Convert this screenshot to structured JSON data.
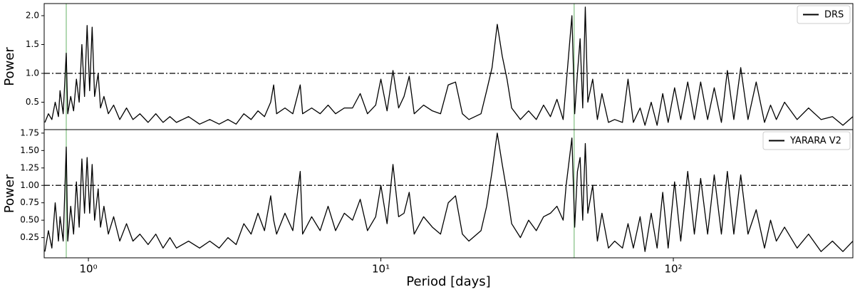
{
  "chart_data": [
    {
      "type": "line",
      "ylabel": "Power",
      "xscale": "log",
      "xlim": [
        0.706,
        411
      ],
      "ylim": [
        0.025,
        2.21
      ],
      "yticks": [
        0.5,
        {
          "value": 1,
          "label": "1.0"
        },
        1.5,
        {
          "value": 2,
          "label": "2.0"
        }
      ],
      "hline": 1,
      "vlines": [
        0.84,
        45.8
      ],
      "vline_color": "#7fbf7f",
      "legend": "upper right",
      "x": [
        0.71,
        0.73,
        0.75,
        0.77,
        0.79,
        0.8,
        0.82,
        0.84,
        0.85,
        0.87,
        0.89,
        0.91,
        0.93,
        0.95,
        0.97,
        0.99,
        1.01,
        1.03,
        1.05,
        1.08,
        1.1,
        1.13,
        1.17,
        1.22,
        1.28,
        1.35,
        1.42,
        1.5,
        1.6,
        1.7,
        1.8,
        1.9,
        2.0,
        2.2,
        2.4,
        2.6,
        2.8,
        3.0,
        3.2,
        3.4,
        3.6,
        3.8,
        4.0,
        4.2,
        4.3,
        4.4,
        4.7,
        5.0,
        5.3,
        5.4,
        5.8,
        6.2,
        6.6,
        7.0,
        7.5,
        8.0,
        8.5,
        9.0,
        9.6,
        10,
        10.5,
        11,
        11.5,
        12,
        12.5,
        13,
        14,
        15,
        16,
        17,
        18,
        19,
        20,
        22,
        23,
        24,
        25,
        26,
        27,
        28,
        30,
        32,
        34,
        36,
        38,
        40,
        42,
        43,
        45,
        46,
        47,
        48,
        49,
        50,
        51,
        53,
        55,
        57,
        60,
        63,
        67,
        70,
        73,
        77,
        80,
        84,
        88,
        92,
        96,
        101,
        106,
        112,
        118,
        124,
        131,
        138,
        146,
        153,
        161,
        170,
        180,
        192,
        205,
        215,
        225,
        240,
        265,
        290,
        320,
        350,
        380,
        411
      ],
      "series": [
        {
          "name": "DRS",
          "color": "#000000",
          "values": [
            0.15,
            0.3,
            0.2,
            0.5,
            0.25,
            0.7,
            0.3,
            1.35,
            0.3,
            0.6,
            0.35,
            0.9,
            0.5,
            1.5,
            0.6,
            1.83,
            0.7,
            1.8,
            0.6,
            1.0,
            0.4,
            0.6,
            0.3,
            0.45,
            0.2,
            0.4,
            0.2,
            0.3,
            0.15,
            0.3,
            0.15,
            0.25,
            0.15,
            0.25,
            0.12,
            0.2,
            0.12,
            0.2,
            0.12,
            0.3,
            0.2,
            0.35,
            0.25,
            0.5,
            0.8,
            0.3,
            0.4,
            0.3,
            0.8,
            0.3,
            0.4,
            0.3,
            0.45,
            0.3,
            0.4,
            0.4,
            0.65,
            0.3,
            0.45,
            0.9,
            0.35,
            1.05,
            0.4,
            0.6,
            0.95,
            0.3,
            0.45,
            0.35,
            0.3,
            0.8,
            0.85,
            0.3,
            0.2,
            0.3,
            0.7,
            1.1,
            1.85,
            1.3,
            0.9,
            0.4,
            0.2,
            0.35,
            0.2,
            0.45,
            0.25,
            0.55,
            0.2,
            0.8,
            2.0,
            0.3,
            1.0,
            1.6,
            0.4,
            2.15,
            0.5,
            0.9,
            0.2,
            0.65,
            0.15,
            0.2,
            0.15,
            0.9,
            0.15,
            0.4,
            0.1,
            0.5,
            0.1,
            0.65,
            0.15,
            0.75,
            0.2,
            0.85,
            0.2,
            0.85,
            0.2,
            0.75,
            0.15,
            1.05,
            0.2,
            1.1,
            0.2,
            0.85,
            0.15,
            0.45,
            0.2,
            0.5,
            0.2,
            0.4,
            0.2,
            0.25,
            0.1,
            0.25
          ]
        }
      ]
    },
    {
      "type": "line",
      "ylabel": "Power",
      "xlabel": "Period [days]",
      "xscale": "log",
      "xlim": [
        0.706,
        411
      ],
      "ylim": [
        -0.04,
        1.8
      ],
      "yticks": [
        0.25,
        {
          "value": 0.5,
          "label": "0.50"
        },
        0.75,
        {
          "value": 1,
          "label": "1.00"
        },
        1.25,
        {
          "value": 1.5,
          "label": "1.50"
        },
        1.75
      ],
      "xticks": [
        {
          "value": 1,
          "label": "10⁰"
        },
        {
          "value": 10,
          "label": "10¹"
        },
        {
          "value": 100,
          "label": "10²"
        }
      ],
      "hline": 1,
      "vlines": [
        0.84,
        45.8
      ],
      "vline_color": "#7fbf7f",
      "legend": "upper right",
      "x": [
        0.71,
        0.73,
        0.75,
        0.77,
        0.79,
        0.8,
        0.82,
        0.84,
        0.85,
        0.87,
        0.89,
        0.91,
        0.93,
        0.95,
        0.97,
        0.99,
        1.01,
        1.03,
        1.05,
        1.08,
        1.1,
        1.13,
        1.17,
        1.22,
        1.28,
        1.35,
        1.42,
        1.5,
        1.6,
        1.7,
        1.8,
        1.9,
        2.0,
        2.2,
        2.4,
        2.6,
        2.8,
        3.0,
        3.2,
        3.4,
        3.6,
        3.8,
        4.0,
        4.2,
        4.3,
        4.4,
        4.7,
        5.0,
        5.3,
        5.4,
        5.8,
        6.2,
        6.6,
        7.0,
        7.5,
        8.0,
        8.5,
        9.0,
        9.6,
        10,
        10.5,
        11,
        11.5,
        12,
        12.5,
        13,
        14,
        15,
        16,
        17,
        18,
        19,
        20,
        22,
        23,
        24,
        25,
        26,
        27,
        28,
        30,
        32,
        34,
        36,
        38,
        40,
        42,
        43,
        45,
        46,
        47,
        48,
        49,
        50,
        51,
        53,
        55,
        57,
        60,
        63,
        67,
        70,
        73,
        77,
        80,
        84,
        88,
        92,
        96,
        101,
        106,
        112,
        118,
        124,
        131,
        138,
        146,
        153,
        161,
        170,
        180,
        192,
        205,
        215,
        225,
        240,
        265,
        290,
        320,
        350,
        380,
        411
      ],
      "series": [
        {
          "name": "YARARA V2",
          "color": "#000000",
          "values": [
            0.05,
            0.35,
            0.1,
            0.75,
            0.2,
            0.55,
            0.2,
            1.55,
            0.2,
            0.7,
            0.3,
            1.05,
            0.4,
            1.38,
            0.6,
            1.4,
            0.6,
            1.3,
            0.5,
            0.95,
            0.4,
            0.7,
            0.3,
            0.55,
            0.2,
            0.45,
            0.2,
            0.3,
            0.15,
            0.3,
            0.1,
            0.25,
            0.1,
            0.2,
            0.1,
            0.2,
            0.1,
            0.25,
            0.15,
            0.45,
            0.3,
            0.6,
            0.35,
            0.85,
            0.5,
            0.3,
            0.6,
            0.35,
            1.2,
            0.3,
            0.55,
            0.35,
            0.7,
            0.35,
            0.6,
            0.5,
            0.8,
            0.35,
            0.55,
            1.0,
            0.45,
            1.3,
            0.55,
            0.6,
            0.9,
            0.3,
            0.55,
            0.4,
            0.3,
            0.75,
            0.85,
            0.3,
            0.2,
            0.35,
            0.7,
            1.2,
            1.75,
            1.3,
            0.9,
            0.45,
            0.25,
            0.5,
            0.35,
            0.55,
            0.6,
            0.7,
            0.5,
            1.0,
            1.68,
            0.4,
            1.2,
            1.4,
            0.5,
            1.6,
            0.6,
            1.0,
            0.2,
            0.6,
            0.1,
            0.2,
            0.1,
            0.45,
            0.1,
            0.55,
            0.05,
            0.6,
            0.1,
            0.9,
            0.1,
            1.05,
            0.2,
            1.2,
            0.3,
            1.1,
            0.3,
            1.15,
            0.3,
            1.2,
            0.3,
            1.15,
            0.3,
            0.65,
            0.1,
            0.5,
            0.2,
            0.4,
            0.1,
            0.3,
            0.05,
            0.2,
            0.05,
            0.2
          ]
        }
      ]
    }
  ]
}
